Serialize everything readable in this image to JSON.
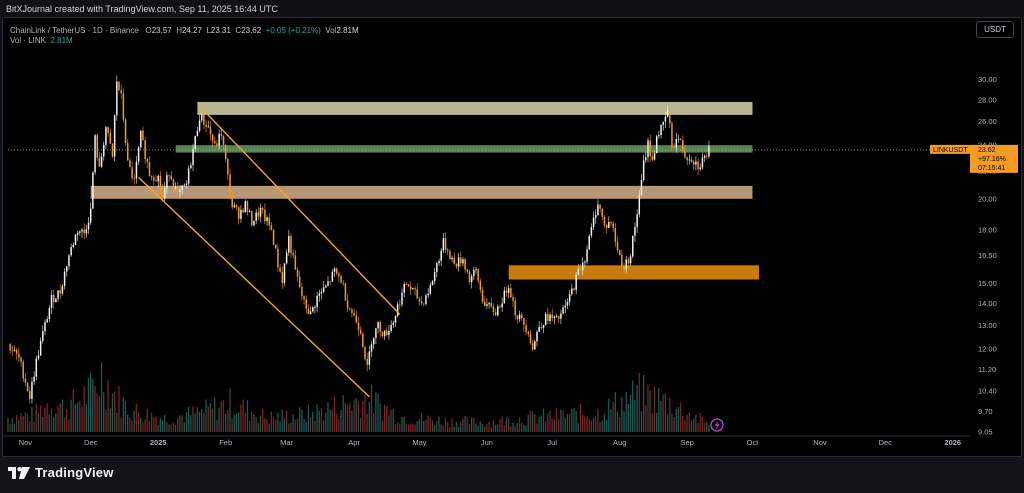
{
  "header": {
    "credit": "BitXJournal created with TradingView.com, Sep 11, 2025 16:44 UTC"
  },
  "legend": {
    "symbol": "ChainLink / TetherUS · 1D · Binance",
    "o_label": "O",
    "o": "23.57",
    "h_label": "H",
    "h": "24.27",
    "l_label": "L",
    "l": "23.31",
    "c_label": "C",
    "c": "23.62",
    "change": "+0.05 (+0.21%)",
    "vol_label": "Vol",
    "vol": "2.81M",
    "vol2_label": "Vol · LINK",
    "vol2": "2.81M"
  },
  "toolbar": {
    "currency": "USDT"
  },
  "price_tag": {
    "label": "LINKUSDT",
    "price": "23.62",
    "change": "+97.16%",
    "countdown": "07:15:41"
  },
  "footer": {
    "brand": "TradingView"
  },
  "colors": {
    "up": "#26a69a",
    "down": "#ef5350",
    "candle_up": "#f0f0f0",
    "candle_down": "#f59a23",
    "zone_top": "#c8c4a0",
    "zone_green": "#5e8f5e",
    "zone_mid": "#c9a47e",
    "zone_orange": "#d9860d",
    "channel": "#f5a623"
  },
  "chart_data": {
    "type": "candlestick",
    "y_axis_ticks": [
      "30.00",
      "28.00",
      "26.00",
      "24.00",
      "22.00",
      "20.00",
      "18.00",
      "16.50",
      "15.00",
      "14.00",
      "13.00",
      "12.00",
      "11.20",
      "10.40",
      "9.70",
      "9.05"
    ],
    "y_scale": "log",
    "ylim": [
      9.05,
      32.5
    ],
    "x_axis_ticks": [
      "Nov",
      "Dec",
      "2025",
      "Feb",
      "Mar",
      "Apr",
      "May",
      "Jun",
      "Jul",
      "Aug",
      "Sep",
      "Oct",
      "Nov",
      "Dec",
      "2026"
    ],
    "x_range": [
      "2024-10-24",
      "2026-01-08"
    ],
    "path_points": [
      [
        "2024-10-24",
        12.2
      ],
      [
        "2024-10-29",
        11.6
      ],
      [
        "2024-11-03",
        10.2
      ],
      [
        "2024-11-06",
        11.5
      ],
      [
        "2024-11-10",
        13.0
      ],
      [
        "2024-11-13",
        14.2
      ],
      [
        "2024-11-17",
        14.6
      ],
      [
        "2024-11-21",
        16.5
      ],
      [
        "2024-11-25",
        18.0
      ],
      [
        "2024-11-28",
        17.8
      ],
      [
        "2024-12-01",
        19.2
      ],
      [
        "2024-12-03",
        24.5
      ],
      [
        "2024-12-05",
        22.0
      ],
      [
        "2024-12-08",
        25.5
      ],
      [
        "2024-12-11",
        23.0
      ],
      [
        "2024-12-13",
        29.8
      ],
      [
        "2024-12-15",
        28.2
      ],
      [
        "2024-12-18",
        22.5
      ],
      [
        "2024-12-21",
        21.2
      ],
      [
        "2024-12-24",
        24.8
      ],
      [
        "2024-12-28",
        21.8
      ],
      [
        "2025-01-01",
        21.5
      ],
      [
        "2025-01-03",
        20.0
      ],
      [
        "2025-01-06",
        22.0
      ],
      [
        "2025-01-10",
        20.2
      ],
      [
        "2025-01-14",
        21.0
      ],
      [
        "2025-01-18",
        24.5
      ],
      [
        "2025-01-20",
        26.5
      ],
      [
        "2025-01-24",
        25.5
      ],
      [
        "2025-01-27",
        23.8
      ],
      [
        "2025-01-30",
        25.0
      ],
      [
        "2025-02-02",
        21.5
      ],
      [
        "2025-02-04",
        19.5
      ],
      [
        "2025-02-07",
        19.0
      ],
      [
        "2025-02-10",
        19.6
      ],
      [
        "2025-02-13",
        18.5
      ],
      [
        "2025-02-17",
        19.2
      ],
      [
        "2025-02-22",
        18.0
      ],
      [
        "2025-02-25",
        16.0
      ],
      [
        "2025-02-27",
        15.2
      ],
      [
        "2025-03-02",
        17.5
      ],
      [
        "2025-03-05",
        15.6
      ],
      [
        "2025-03-09",
        14.0
      ],
      [
        "2025-03-12",
        13.5
      ],
      [
        "2025-03-15",
        14.3
      ],
      [
        "2025-03-19",
        14.8
      ],
      [
        "2025-03-23",
        15.6
      ],
      [
        "2025-03-26",
        15.2
      ],
      [
        "2025-03-29",
        14.0
      ],
      [
        "2025-04-01",
        13.4
      ],
      [
        "2025-04-04",
        12.8
      ],
      [
        "2025-04-07",
        11.2
      ],
      [
        "2025-04-09",
        12.4
      ],
      [
        "2025-04-12",
        13.0
      ],
      [
        "2025-04-15",
        12.6
      ],
      [
        "2025-04-19",
        13.2
      ],
      [
        "2025-04-22",
        14.2
      ],
      [
        "2025-04-25",
        15.0
      ],
      [
        "2025-04-28",
        14.6
      ],
      [
        "2025-05-02",
        14.0
      ],
      [
        "2025-05-06",
        14.8
      ],
      [
        "2025-05-09",
        16.0
      ],
      [
        "2025-05-12",
        17.2
      ],
      [
        "2025-05-14",
        16.8
      ],
      [
        "2025-05-17",
        16.0
      ],
      [
        "2025-05-21",
        16.3
      ],
      [
        "2025-05-24",
        15.2
      ],
      [
        "2025-05-27",
        15.6
      ],
      [
        "2025-05-30",
        14.2
      ],
      [
        "2025-06-02",
        13.8
      ],
      [
        "2025-06-05",
        13.6
      ],
      [
        "2025-06-09",
        14.4
      ],
      [
        "2025-06-11",
        15.0
      ],
      [
        "2025-06-14",
        13.6
      ],
      [
        "2025-06-17",
        13.2
      ],
      [
        "2025-06-20",
        12.8
      ],
      [
        "2025-06-22",
        12.0
      ],
      [
        "2025-06-25",
        13.0
      ],
      [
        "2025-06-29",
        13.4
      ],
      [
        "2025-07-03",
        13.2
      ],
      [
        "2025-07-07",
        13.8
      ],
      [
        "2025-07-10",
        14.6
      ],
      [
        "2025-07-13",
        15.6
      ],
      [
        "2025-07-16",
        16.4
      ],
      [
        "2025-07-19",
        18.0
      ],
      [
        "2025-07-22",
        19.8
      ],
      [
        "2025-07-25",
        18.2
      ],
      [
        "2025-07-28",
        18.5
      ],
      [
        "2025-07-31",
        16.8
      ],
      [
        "2025-08-03",
        15.8
      ],
      [
        "2025-08-06",
        16.6
      ],
      [
        "2025-08-08",
        18.2
      ],
      [
        "2025-08-10",
        20.0
      ],
      [
        "2025-08-12",
        22.5
      ],
      [
        "2025-08-14",
        24.2
      ],
      [
        "2025-08-16",
        22.6
      ],
      [
        "2025-08-18",
        24.8
      ],
      [
        "2025-08-21",
        25.6
      ],
      [
        "2025-08-23",
        27.0
      ],
      [
        "2025-08-25",
        24.0
      ],
      [
        "2025-08-28",
        24.6
      ],
      [
        "2025-08-31",
        23.2
      ],
      [
        "2025-09-03",
        23.0
      ],
      [
        "2025-09-06",
        22.4
      ],
      [
        "2025-09-09",
        23.0
      ],
      [
        "2025-09-11",
        23.62
      ]
    ],
    "zones": [
      {
        "from": "2025-01-19",
        "to": "2025-10-01",
        "low": 26.6,
        "high": 27.8,
        "color": "#c8c4a0"
      },
      {
        "from": "2025-01-09",
        "to": "2025-10-01",
        "low": 23.4,
        "high": 24.0,
        "color": "#5e8f5e"
      },
      {
        "from": "2024-12-01",
        "to": "2025-10-01",
        "low": 20.0,
        "high": 20.9,
        "color": "#c9a47e"
      },
      {
        "from": "2025-06-11",
        "to": "2025-10-04",
        "low": 15.2,
        "high": 15.95,
        "color": "#d9860d"
      }
    ],
    "channel_lines": [
      {
        "from": [
          "2025-01-21",
          27.2
        ],
        "to": [
          "2025-04-22",
          13.5
        ]
      },
      {
        "from": [
          "2024-12-23",
          21.5
        ],
        "to": [
          "2025-04-08",
          10.2
        ]
      }
    ],
    "last_price": 23.62,
    "volume_series": [
      [
        "2024-10-24",
        0.15
      ],
      [
        "2024-11-05",
        0.18
      ],
      [
        "2024-11-12",
        0.3
      ],
      [
        "2024-11-20",
        0.25
      ],
      [
        "2024-12-03",
        0.45
      ],
      [
        "2024-12-06",
        0.6
      ],
      [
        "2024-12-13",
        0.35
      ],
      [
        "2024-12-20",
        0.22
      ],
      [
        "2025-01-05",
        0.14
      ],
      [
        "2025-01-20",
        0.2
      ],
      [
        "2025-02-03",
        0.3
      ],
      [
        "2025-02-20",
        0.15
      ],
      [
        "2025-03-10",
        0.18
      ],
      [
        "2025-04-07",
        0.35
      ],
      [
        "2025-04-22",
        0.16
      ],
      [
        "2025-05-10",
        0.12
      ],
      [
        "2025-06-01",
        0.1
      ],
      [
        "2025-06-22",
        0.15
      ],
      [
        "2025-07-22",
        0.2
      ],
      [
        "2025-08-10",
        0.4
      ],
      [
        "2025-08-22",
        0.32
      ],
      [
        "2025-09-11",
        0.08
      ]
    ]
  }
}
